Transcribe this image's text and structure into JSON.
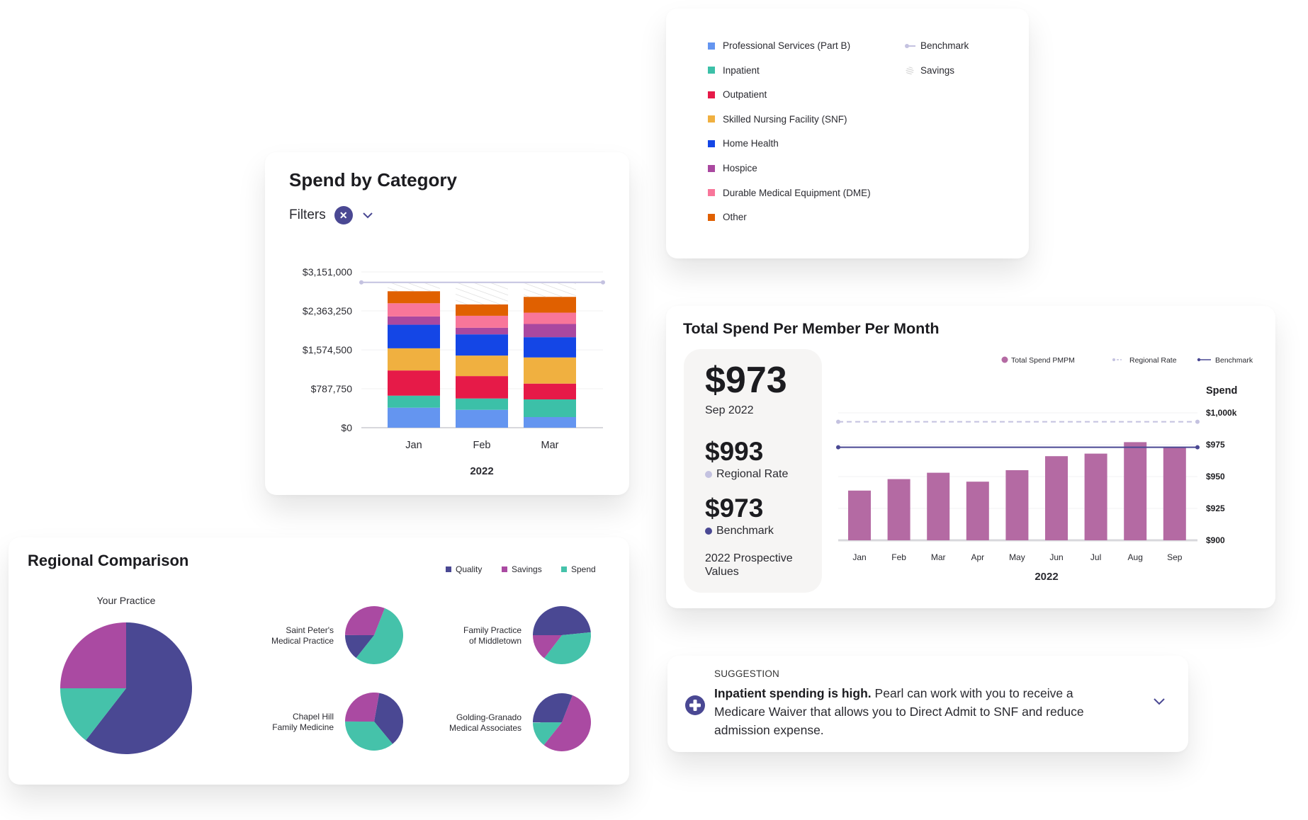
{
  "colors": {
    "professional_services": "#6495f0",
    "inpatient": "#3cc0a8",
    "outpatient": "#e61a48",
    "snf": "#f0b040",
    "home_health": "#1446e6",
    "hospice": "#aa48a0",
    "dme": "#f8769a",
    "other": "#e06000",
    "benchmark_light": "#c4c2e0",
    "navy": "#4a4893",
    "pmpm_bar": "#b46aa3",
    "quality": "#4a4893",
    "savings": "#aa4aa2",
    "spend": "#45c2aa",
    "panel_bg": "#f6f5f4"
  },
  "legend_card": {
    "categories": [
      {
        "label": "Professional Services (Part B)",
        "color_key": "professional_services"
      },
      {
        "label": "Inpatient",
        "color_key": "inpatient"
      },
      {
        "label": "Outpatient",
        "color_key": "outpatient"
      },
      {
        "label": "Skilled Nursing Facility (SNF)",
        "color_key": "snf"
      },
      {
        "label": "Home Health",
        "color_key": "home_health"
      },
      {
        "label": "Hospice",
        "color_key": "hospice"
      },
      {
        "label": "Durable Medical Equipment (DME)",
        "color_key": "dme"
      },
      {
        "label": "Other",
        "color_key": "other"
      }
    ],
    "markers": [
      {
        "label": "Benchmark",
        "icon": "line-dot-icon"
      },
      {
        "label": "Savings",
        "icon": "hatch-icon"
      }
    ]
  },
  "spend_card": {
    "title": "Spend by Category",
    "filters_label": "Filters",
    "clear_icon": "close-icon",
    "dropdown_icon": "chevron-down-icon"
  },
  "pmpm_card": {
    "title": "Total Spend Per Member Per Month",
    "current_value": "$973",
    "current_period": "Sep 2022",
    "regional_value": "$993",
    "regional_label": "Regional Rate",
    "benchmark_value": "$973",
    "benchmark_label": "Benchmark",
    "note": "2022 Prospective Values"
  },
  "regional_card": {
    "title": "Regional Comparison"
  },
  "suggestion": {
    "tag": "SUGGESTION",
    "headline": "Inpatient spending is high.",
    "body": " Pearl can work with you to receive a Medicare Waiver that allows you to Direct Admit to SNF and reduce admission expense.",
    "icon": "plus-circle-icon",
    "expand_icon": "chevron-down-icon"
  },
  "chart_data": [
    {
      "type": "bar",
      "stacked": true,
      "title": "Spend by Category",
      "xlabel": "2022",
      "ylabel": "",
      "categories": [
        "Jan",
        "Feb",
        "Mar"
      ],
      "ylim": [
        0,
        3151000
      ],
      "yticks": [
        0,
        787750,
        1574500,
        2363250,
        3151000
      ],
      "ytick_labels": [
        "$0",
        "$787,750",
        "$1,574,500",
        "$2,363,250",
        "$3,151,000"
      ],
      "grid": true,
      "series": [
        {
          "name": "Professional Services (Part B)",
          "color_key": "professional_services",
          "values": [
            405000,
            362000,
            215000
          ]
        },
        {
          "name": "Inpatient",
          "color_key": "inpatient",
          "values": [
            243000,
            229000,
            358000
          ]
        },
        {
          "name": "Outpatient",
          "color_key": "outpatient",
          "values": [
            510000,
            453000,
            319000
          ]
        },
        {
          "name": "Skilled Nursing Facility (SNF)",
          "color_key": "snf",
          "values": [
            448000,
            415000,
            529000
          ]
        },
        {
          "name": "Home Health",
          "color_key": "home_health",
          "values": [
            477000,
            429000,
            410000
          ]
        },
        {
          "name": "Hospice",
          "color_key": "hospice",
          "values": [
            167000,
            133000,
            267000
          ]
        },
        {
          "name": "Durable Medical Equipment (DME)",
          "color_key": "dme",
          "values": [
            267000,
            243000,
            229000
          ]
        },
        {
          "name": "Other",
          "color_key": "other",
          "values": [
            243000,
            229000,
            319000
          ]
        },
        {
          "name": "Savings",
          "pattern": "hatch",
          "values": [
            162000,
            429000,
            276000
          ]
        }
      ],
      "benchmark": 2940000,
      "legend": "separate-card"
    },
    {
      "type": "bar",
      "title": "Total Spend Per Member Per Month",
      "xlabel": "2022",
      "ylabel": "Spend",
      "categories": [
        "Jan",
        "Feb",
        "Mar",
        "Apr",
        "May",
        "Jun",
        "Jul",
        "Aug",
        "Sep"
      ],
      "ylim": [
        900,
        1000
      ],
      "yticks": [
        900,
        925,
        950,
        975,
        1000
      ],
      "ytick_labels": [
        "$900",
        "$925",
        "$950",
        "$975",
        "$1,000k"
      ],
      "grid": true,
      "series": [
        {
          "name": "Total Spend PMPM",
          "values": [
            939,
            948,
            953,
            946,
            955,
            966,
            968,
            977,
            973
          ]
        }
      ],
      "reference_lines": [
        {
          "name": "Regional Rate",
          "value": 993,
          "style": "dashed"
        },
        {
          "name": "Benchmark",
          "value": 973,
          "style": "solid"
        }
      ],
      "legend": "top-right"
    },
    {
      "type": "pie",
      "title": "Regional Comparison",
      "legend_entries": [
        "Quality",
        "Savings",
        "Spend"
      ],
      "legend": "top-right",
      "pies": [
        {
          "label": "Your Practice",
          "slices": [
            {
              "name": "Quality",
              "value": 60.5
            },
            {
              "name": "Spend",
              "value": 14.5
            },
            {
              "name": "Savings",
              "value": 25.0
            }
          ],
          "start_deg": 0
        },
        {
          "label": "Saint Peter's\nMedical Practice",
          "line1": "Saint Peter's",
          "line2": "Medical Practice",
          "slices": [
            {
              "name": "Spend",
              "value": 54.7
            },
            {
              "name": "Quality",
              "value": 14.4
            },
            {
              "name": "Savings",
              "value": 30.9
            }
          ],
          "start_deg": 21.4
        },
        {
          "label": "Family Practice\nof Middletown",
          "line1": "Family Practice",
          "line2": "of Middletown",
          "slices": [
            {
              "name": "Quality",
              "value": 48.4
            },
            {
              "name": "Spend",
              "value": 37.0
            },
            {
              "name": "Savings",
              "value": 14.6
            }
          ],
          "start_deg": 270
        },
        {
          "label": "Chapel Hill\nFamily Medicine",
          "line1": "Chapel Hill",
          "line2": "Family Medicine",
          "slices": [
            {
              "name": "Quality",
              "value": 36.2
            },
            {
              "name": "Spend",
              "value": 36.0
            },
            {
              "name": "Savings",
              "value": 27.8
            }
          ],
          "start_deg": 10.2
        },
        {
          "label": "Golding-Granado\nMedical Associates",
          "line1": "Golding-Granado",
          "line2": "Medical Associates",
          "slices": [
            {
              "name": "Savings",
              "value": 54.7
            },
            {
              "name": "Spend",
              "value": 14.3
            },
            {
              "name": "Quality",
              "value": 31.0
            }
          ],
          "start_deg": 21.4
        }
      ]
    }
  ]
}
